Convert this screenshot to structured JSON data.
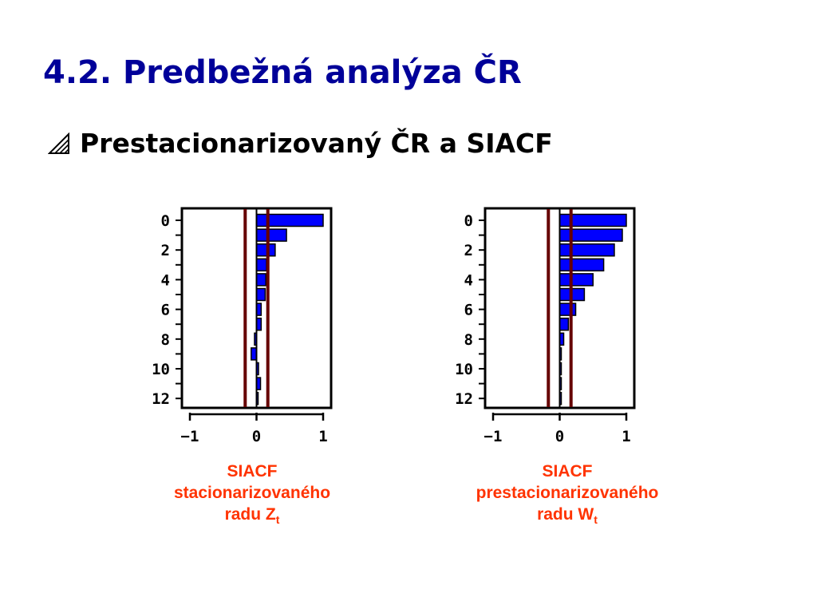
{
  "slide": {
    "title": "4.2. Predbežná analýza ČR",
    "bullet": {
      "icon": "hatched-triangle-bullet-icon",
      "text": "Prestacionarizovaný ČR a SIACF"
    }
  },
  "chart_data": [
    {
      "type": "bar",
      "orientation": "horizontal",
      "lags": [
        0,
        1,
        2,
        3,
        4,
        5,
        6,
        7,
        8,
        9,
        10,
        11,
        12
      ],
      "values": [
        1.0,
        0.45,
        0.28,
        0.15,
        0.14,
        0.13,
        0.07,
        0.07,
        -0.03,
        -0.08,
        0.03,
        0.06,
        0.02
      ],
      "ytick_labels": [
        "0",
        "2",
        "4",
        "6",
        "8",
        "10",
        "12"
      ],
      "xtick_labels": [
        "-1",
        "0",
        "1"
      ],
      "xlim": [
        -1,
        1.1
      ],
      "confidence_limits": [
        -0.17,
        0.17
      ],
      "bar_color": "#0000ff",
      "limit_color": "#660000",
      "caption_lines": [
        "SIACF",
        "stacionarizovaného",
        "radu Z"
      ],
      "caption_subscript": "t"
    },
    {
      "type": "bar",
      "orientation": "horizontal",
      "lags": [
        0,
        1,
        2,
        3,
        4,
        5,
        6,
        7,
        8,
        9,
        10,
        11,
        12
      ],
      "values": [
        1.0,
        0.94,
        0.82,
        0.66,
        0.5,
        0.37,
        0.24,
        0.13,
        0.06,
        0.02,
        0.01,
        0.01,
        0.01
      ],
      "ytick_labels": [
        "0",
        "2",
        "4",
        "6",
        "8",
        "10",
        "12"
      ],
      "xtick_labels": [
        "-1",
        "0",
        "1"
      ],
      "xlim": [
        -1,
        1.1
      ],
      "confidence_limits": [
        -0.17,
        0.17
      ],
      "bar_color": "#0000ff",
      "limit_color": "#660000",
      "caption_lines": [
        "SIACF",
        "prestacionarizovaného",
        "radu W"
      ],
      "caption_subscript": "t"
    }
  ]
}
